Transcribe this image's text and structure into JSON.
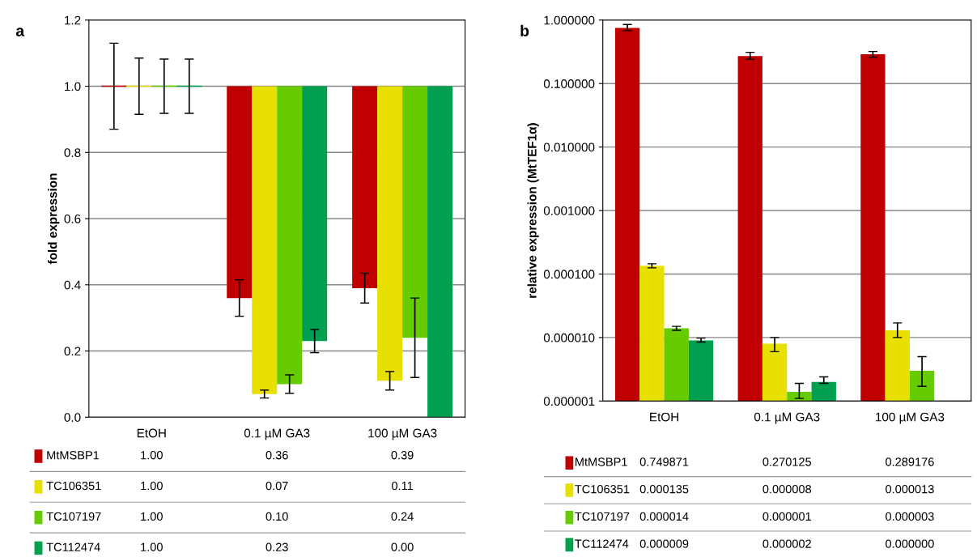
{
  "chart_data": [
    {
      "type": "bar",
      "title": "a",
      "ylabel": "fold expression",
      "categories": [
        "EtOH",
        "0.1 µM GA3",
        "100 µM GA3"
      ],
      "series": [
        {
          "name": "MtMSBP1",
          "color": "#c00000",
          "base": [
            1,
            1,
            1
          ],
          "values": [
            0,
            -0.64,
            -0.61
          ],
          "value_labels": [
            "1.00",
            "0.36",
            "0.39"
          ],
          "errors": [
            0.13,
            0.055,
            0.045
          ]
        },
        {
          "name": "TC106351",
          "color": "#e8e000",
          "base": [
            1,
            1,
            1
          ],
          "values": [
            0,
            -0.93,
            -0.89
          ],
          "value_labels": [
            "1.00",
            "0.07",
            "0.11"
          ],
          "errors": [
            0.085,
            0.012,
            0.028
          ]
        },
        {
          "name": "TC107197",
          "color": "#66cc00",
          "base": [
            1,
            1,
            1
          ],
          "values": [
            0,
            -0.9,
            -0.76
          ],
          "value_labels": [
            "1.00",
            "0.10",
            "0.24"
          ],
          "errors": [
            0.082,
            0.028,
            0.12
          ]
        },
        {
          "name": "TC112474",
          "color": "#00a050",
          "base": [
            1,
            1,
            1
          ],
          "values": [
            0,
            -0.77,
            -1.0
          ],
          "value_labels": [
            "1.00",
            "0.23",
            "0.00"
          ],
          "errors": [
            0.082,
            0.035,
            null
          ]
        }
      ],
      "ylim": [
        0,
        1.2
      ],
      "yticks": [
        {
          "value": 0,
          "label": "0.0"
        },
        {
          "value": 0.2,
          "label": "0.2"
        },
        {
          "value": 0.4,
          "label": "0.4"
        },
        {
          "value": 0.6,
          "label": "0.6"
        },
        {
          "value": 0.8,
          "label": "0.8"
        },
        {
          "value": 1.0,
          "label": "1.0"
        },
        {
          "value": 1.2,
          "label": "1.2"
        }
      ],
      "grid": "y",
      "legend": "bottom"
    },
    {
      "type": "bar",
      "title": "b",
      "ylabel": "relative expression (MtTEF1α)",
      "categories": [
        "EtOH",
        "0.1 µM GA3",
        "100 µM GA3"
      ],
      "series": [
        {
          "name": "MtMSBP1",
          "color": "#c00000",
          "values": [
            0.749871,
            0.270125,
            0.289176
          ],
          "value_labels": [
            "0.749871",
            "0.270125",
            "0.289176"
          ],
          "errors": [
            [
              0.68,
              0.85
            ],
            [
              0.24,
              0.31
            ],
            [
              0.26,
              0.32
            ]
          ]
        },
        {
          "name": "TC106351",
          "color": "#e8e000",
          "values": [
            0.000135,
            8e-06,
            1.3e-05
          ],
          "value_labels": [
            "0.000135",
            "0.000008",
            "0.000013"
          ],
          "errors": [
            [
              0.000125,
              0.000145
            ],
            [
              6e-06,
              1e-05
            ],
            [
              1e-05,
              1.7e-05
            ]
          ]
        },
        {
          "name": "TC107197",
          "color": "#66cc00",
          "values": [
            1.4e-05,
            1.4e-06,
            3e-06
          ],
          "value_labels": [
            "0.000014",
            "0.000001",
            "0.000003"
          ],
          "errors": [
            [
              1.3e-05,
              1.5e-05
            ],
            [
              1.1e-06,
              1.9e-06
            ],
            [
              1.7e-06,
              5e-06
            ]
          ]
        },
        {
          "name": "TC112474",
          "color": "#00a050",
          "values": [
            9e-06,
            2e-06,
            null
          ],
          "value_labels": [
            "0.000009",
            "0.000002",
            "0.000000"
          ],
          "errors": [
            [
              8.5e-06,
              9.8e-06
            ],
            [
              1.9e-06,
              2.4e-06
            ],
            null
          ]
        }
      ],
      "log": true,
      "ylim": [
        1e-06,
        1
      ],
      "yticks": [
        {
          "value": 1e-06,
          "label": "0.000001"
        },
        {
          "value": 1e-05,
          "label": "0.000010"
        },
        {
          "value": 0.0001,
          "label": "0.000100"
        },
        {
          "value": 0.001,
          "label": "0.001000"
        },
        {
          "value": 0.01,
          "label": "0.010000"
        },
        {
          "value": 0.1,
          "label": "0.100000"
        },
        {
          "value": 1,
          "label": "1.000000"
        }
      ],
      "grid": "y",
      "legend": "bottom"
    }
  ]
}
